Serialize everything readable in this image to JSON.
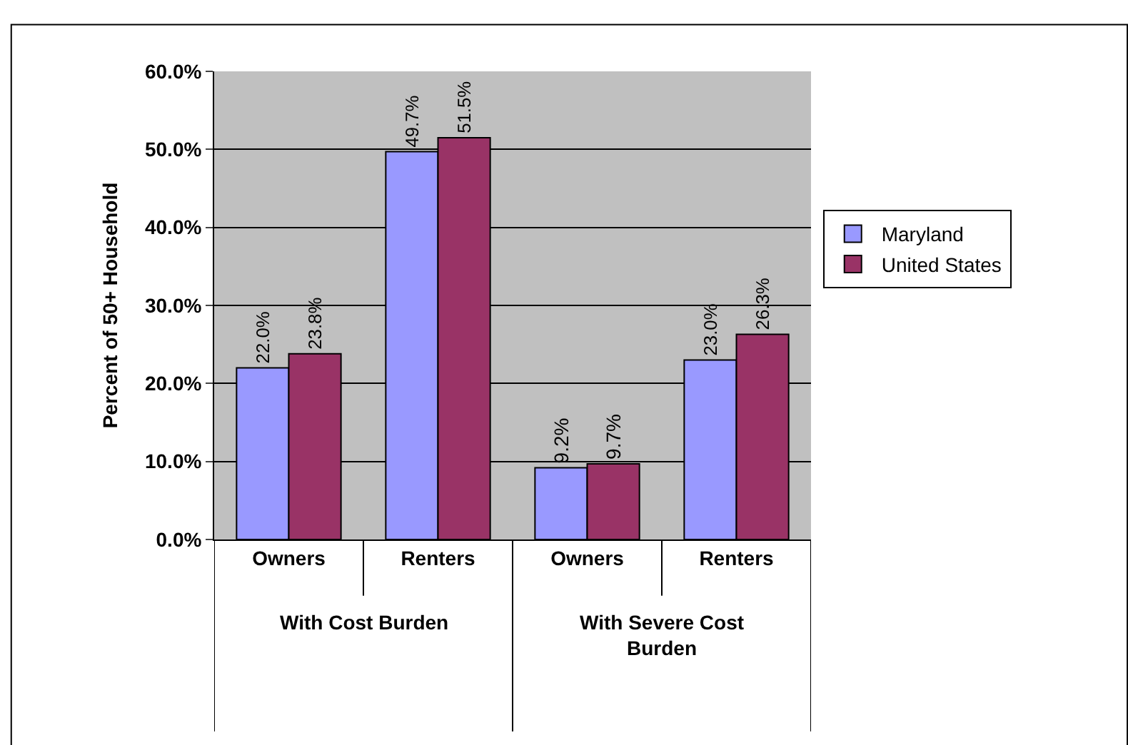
{
  "chart_data": {
    "type": "bar",
    "categories": [
      "Owners",
      "Renters",
      "Owners",
      "Renters"
    ],
    "series": [
      {
        "name": "Maryland",
        "color": "#9999ff",
        "values": [
          22.0,
          49.7,
          9.2,
          23.0
        ],
        "value_labels": [
          "22.0%",
          "49.7%",
          "9.2%",
          "23.0%"
        ]
      },
      {
        "name": "United States",
        "color": "#993366",
        "values": [
          23.8,
          51.5,
          9.7,
          26.3
        ],
        "value_labels": [
          "23.8%",
          "51.5%",
          "9.7%",
          "26.3%"
        ]
      }
    ],
    "ylabel": "Percent of 50+ Household",
    "ylim": [
      0,
      60
    ],
    "yticks": [
      {
        "value": 0,
        "label": "0.0%"
      },
      {
        "value": 10,
        "label": "10.0%"
      },
      {
        "value": 20,
        "label": "20.0%"
      },
      {
        "value": 30,
        "label": "30.0%"
      },
      {
        "value": 40,
        "label": "40.0%"
      },
      {
        "value": 50,
        "label": "50.0%"
      },
      {
        "value": 60,
        "label": "60.0%"
      }
    ],
    "annotations": [
      "With Cost Burden",
      "With Severe Cost\nBurden"
    ],
    "grid": "y",
    "legend": "right"
  }
}
